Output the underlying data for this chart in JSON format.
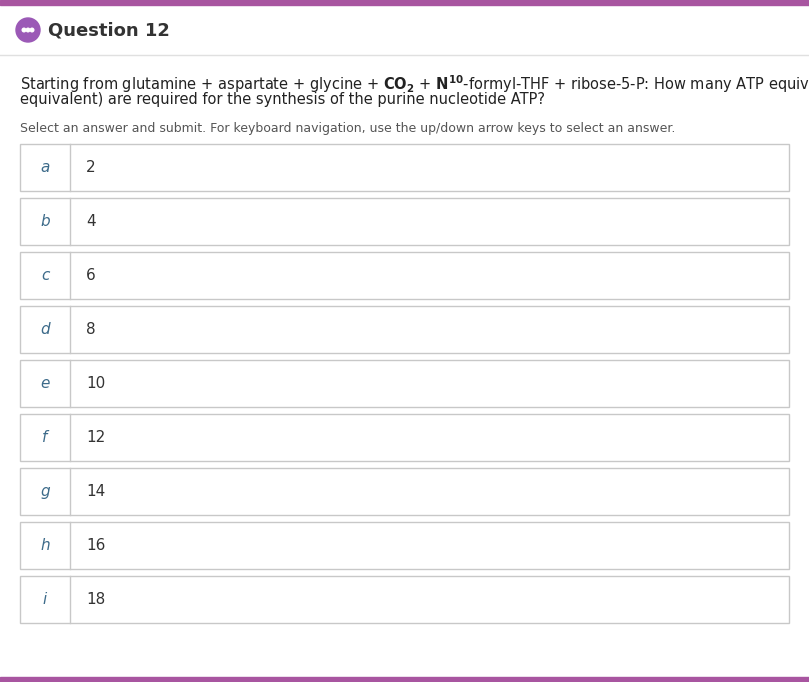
{
  "title": "Question 12",
  "question_text1": "Starting from glutamine + aspartate + glycine + $\\mathbf{CO_2}$ + $\\mathbf{N^{10}}$-formyl-THF + ribose-5-P: How many ATP equivalents (GTP is an ATP",
  "question_text2": "equivalent) are required for the synthesis of the purine nucleotide ATP?",
  "instruction": "Select an answer and submit. For keyboard navigation, use the up/down arrow keys to select an answer.",
  "options": [
    {
      "label": "a",
      "value": "2"
    },
    {
      "label": "b",
      "value": "4"
    },
    {
      "label": "c",
      "value": "6"
    },
    {
      "label": "d",
      "value": "8"
    },
    {
      "label": "e",
      "value": "10"
    },
    {
      "label": "f",
      "value": "12"
    },
    {
      "label": "g",
      "value": "14"
    },
    {
      "label": "h",
      "value": "16"
    },
    {
      "label": "i",
      "value": "18"
    }
  ],
  "bg_color": "#ffffff",
  "box_border_color": "#c8c8c8",
  "label_color": "#3d6b8a",
  "value_color": "#333333",
  "title_color": "#333333",
  "question_color": "#222222",
  "instruction_color": "#555555",
  "icon_color": "#9b59b6",
  "top_bar_color": "#a855a0",
  "fig_width": 8.09,
  "fig_height": 6.82,
  "dpi": 100
}
